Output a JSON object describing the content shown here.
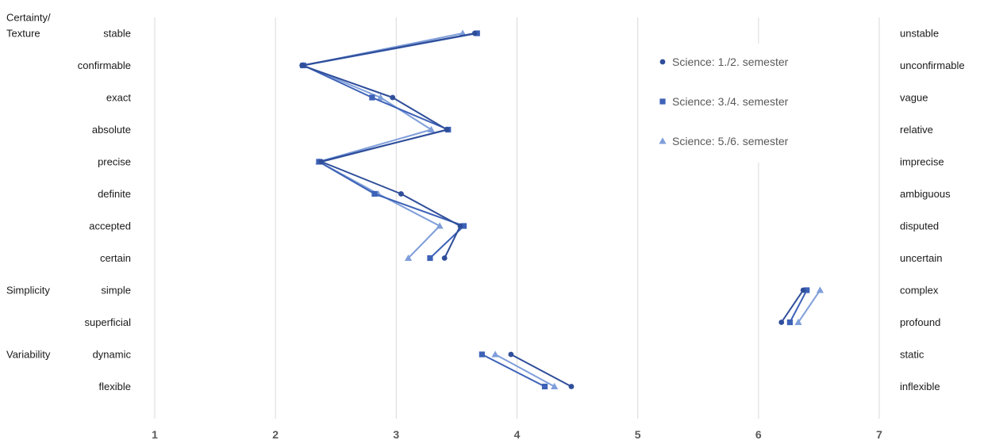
{
  "chart_data": {
    "type": "line",
    "orientation": "horizontal-values",
    "xlim": [
      1,
      7
    ],
    "x_ticks": [
      "1",
      "2",
      "3",
      "4",
      "5",
      "6",
      "7"
    ],
    "grid": "vertical",
    "legend_placement": "top-right",
    "groups": [
      {
        "label": "Certainty/\nTexture",
        "start_row": 0
      },
      {
        "label": "Simplicity",
        "start_row": 8
      },
      {
        "label": "Variability",
        "start_row": 10
      }
    ],
    "rows": [
      {
        "left": "stable",
        "right": "unstable",
        "segment": 0
      },
      {
        "left": "confirmable",
        "right": "unconfirmable",
        "segment": 0
      },
      {
        "left": "exact",
        "right": "vague",
        "segment": 0
      },
      {
        "left": "absolute",
        "right": "relative",
        "segment": 0
      },
      {
        "left": "precise",
        "right": "imprecise",
        "segment": 0
      },
      {
        "left": "definite",
        "right": "ambiguous",
        "segment": 0
      },
      {
        "left": "accepted",
        "right": "disputed",
        "segment": 0
      },
      {
        "left": "certain",
        "right": "uncertain",
        "segment": 0
      },
      {
        "left": "simple",
        "right": "complex",
        "segment": 1
      },
      {
        "left": "superficial",
        "right": "profound",
        "segment": 1
      },
      {
        "left": "dynamic",
        "right": "static",
        "segment": 2
      },
      {
        "left": "flexible",
        "right": "inflexible",
        "segment": 2
      }
    ],
    "series": [
      {
        "name": "Science: 1./2. semester",
        "marker": "circle",
        "color": "#2F4E9A",
        "values": [
          3.65,
          2.22,
          2.97,
          3.42,
          2.38,
          3.04,
          3.53,
          3.4,
          6.37,
          6.19,
          3.95,
          4.45
        ]
      },
      {
        "name": "Science: 3./4. semester",
        "marker": "square",
        "color": "#3D62B7",
        "values": [
          3.67,
          2.23,
          2.8,
          3.43,
          2.36,
          2.82,
          3.56,
          3.28,
          6.4,
          6.26,
          3.71,
          4.23
        ]
      },
      {
        "name": "Science: 5./6. semester",
        "marker": "triangle",
        "color": "#7F9EDA",
        "values": [
          3.55,
          2.23,
          2.87,
          3.29,
          2.36,
          2.85,
          3.36,
          3.1,
          6.51,
          6.33,
          3.82,
          4.31
        ]
      }
    ]
  }
}
